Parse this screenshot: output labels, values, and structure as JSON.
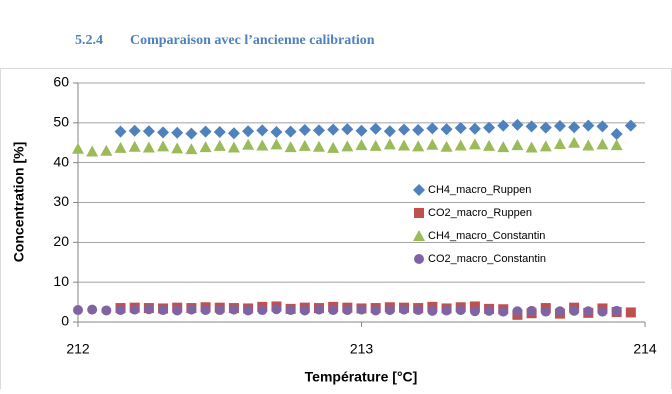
{
  "heading": {
    "number": "5.2.4",
    "title": "Comparaison avec l’ancienne calibration"
  },
  "chart_data": {
    "type": "scatter",
    "x_label": "Température [°C]",
    "y_label": "Concentration [%]",
    "xlim": [
      212,
      214
    ],
    "xticks": [
      212,
      213,
      214
    ],
    "ylim": [
      0,
      60
    ],
    "yticks": [
      0,
      10,
      20,
      30,
      40,
      50,
      60
    ],
    "grid": true,
    "legend": "right",
    "series": [
      {
        "name": "CH4_macro_Ruppen",
        "color": "#4f81bd",
        "marker": "diamond",
        "x": [
          212.15,
          212.2,
          212.25,
          212.3,
          212.35,
          212.4,
          212.45,
          212.5,
          212.55,
          212.6,
          212.65,
          212.7,
          212.75,
          212.8,
          212.85,
          212.9,
          212.95,
          213,
          213.05,
          213.1,
          213.15,
          213.2,
          213.25,
          213.3,
          213.35,
          213.4,
          213.45,
          213.5,
          213.55,
          213.6,
          213.65,
          213.7,
          213.75,
          213.8,
          213.85,
          213.9,
          213.95
        ],
        "values": [
          47.8,
          48,
          47.9,
          47.6,
          47.5,
          47.3,
          47.8,
          47.7,
          47.4,
          47.9,
          48.1,
          47.7,
          47.8,
          48.2,
          48.1,
          48.3,
          48.4,
          48,
          48.5,
          47.9,
          48.3,
          48.2,
          48.6,
          48.4,
          48.7,
          48.5,
          48.8,
          49.3,
          49.5,
          49.1,
          48.8,
          49.2,
          48.9,
          49.3,
          49.1,
          47.2,
          49.3
        ]
      },
      {
        "name": "CO2_macro_Ruppen",
        "color": "#c0504d",
        "marker": "square",
        "x": [
          212.15,
          212.2,
          212.25,
          212.3,
          212.35,
          212.4,
          212.45,
          212.5,
          212.55,
          212.6,
          212.65,
          212.7,
          212.75,
          212.8,
          212.85,
          212.9,
          212.95,
          213,
          213.05,
          213.1,
          213.15,
          213.2,
          213.25,
          213.3,
          213.35,
          213.4,
          213.45,
          213.5,
          213.55,
          213.6,
          213.65,
          213.7,
          213.75,
          213.8,
          213.85,
          213.9,
          213.95
        ],
        "values": [
          3.5,
          3.6,
          3.5,
          3.4,
          3.6,
          3.5,
          3.7,
          3.6,
          3.5,
          3.4,
          3.8,
          3.9,
          3.3,
          3.6,
          3.5,
          3.8,
          3.6,
          3.4,
          3.5,
          3.7,
          3.6,
          3.5,
          3.8,
          3.4,
          3.7,
          3.9,
          3.3,
          3.2,
          1.8,
          2.2,
          3.5,
          2.1,
          3.6,
          2.3,
          3.4,
          2.5,
          2.4
        ]
      },
      {
        "name": "CH4_macro_Constantin",
        "color": "#9bbb59",
        "marker": "triangle",
        "x": [
          212,
          212.05,
          212.1,
          212.15,
          212.2,
          212.25,
          212.3,
          212.35,
          212.4,
          212.45,
          212.5,
          212.55,
          212.6,
          212.65,
          212.7,
          212.75,
          212.8,
          212.85,
          212.9,
          212.95,
          213,
          213.05,
          213.1,
          213.15,
          213.2,
          213.25,
          213.3,
          213.35,
          213.4,
          213.45,
          213.5,
          213.55,
          213.6,
          213.65,
          213.7,
          213.75,
          213.8,
          213.85,
          213.9
        ],
        "values": [
          43.5,
          42.8,
          43,
          43.7,
          44,
          43.8,
          44.1,
          43.6,
          43.4,
          43.9,
          44.2,
          43.8,
          44.5,
          44.3,
          44.6,
          43.9,
          44.2,
          44,
          43.7,
          44.1,
          44.4,
          44.2,
          44.6,
          44.3,
          44.1,
          44.5,
          44,
          44.3,
          44.6,
          44.2,
          43.9,
          44.4,
          43.8,
          44.1,
          44.7,
          45,
          44.3,
          44.6,
          44.4
        ]
      },
      {
        "name": "CO2_macro_Constantin",
        "color": "#8064a2",
        "marker": "circle",
        "x": [
          212,
          212.05,
          212.1,
          212.15,
          212.2,
          212.25,
          212.3,
          212.35,
          212.4,
          212.45,
          212.5,
          212.55,
          212.6,
          212.65,
          212.7,
          212.75,
          212.8,
          212.85,
          212.9,
          212.95,
          213,
          213.05,
          213.1,
          213.15,
          213.2,
          213.25,
          213.3,
          213.35,
          213.4,
          213.45,
          213.5,
          213.55,
          213.6,
          213.65,
          213.7,
          213.75,
          213.8,
          213.85,
          213.9
        ],
        "values": [
          3,
          3.1,
          2.9,
          3,
          3.1,
          3.2,
          3,
          2.9,
          3.1,
          3,
          3,
          3.1,
          2.9,
          3,
          3.2,
          3,
          2.9,
          3.1,
          3,
          3,
          3.1,
          2.9,
          3,
          3.1,
          3,
          2.8,
          2.9,
          3,
          2.7,
          2.8,
          2.6,
          2.7,
          2.8,
          2.6,
          2.7,
          2.8,
          2.7,
          2.6,
          2.8
        ]
      }
    ]
  }
}
